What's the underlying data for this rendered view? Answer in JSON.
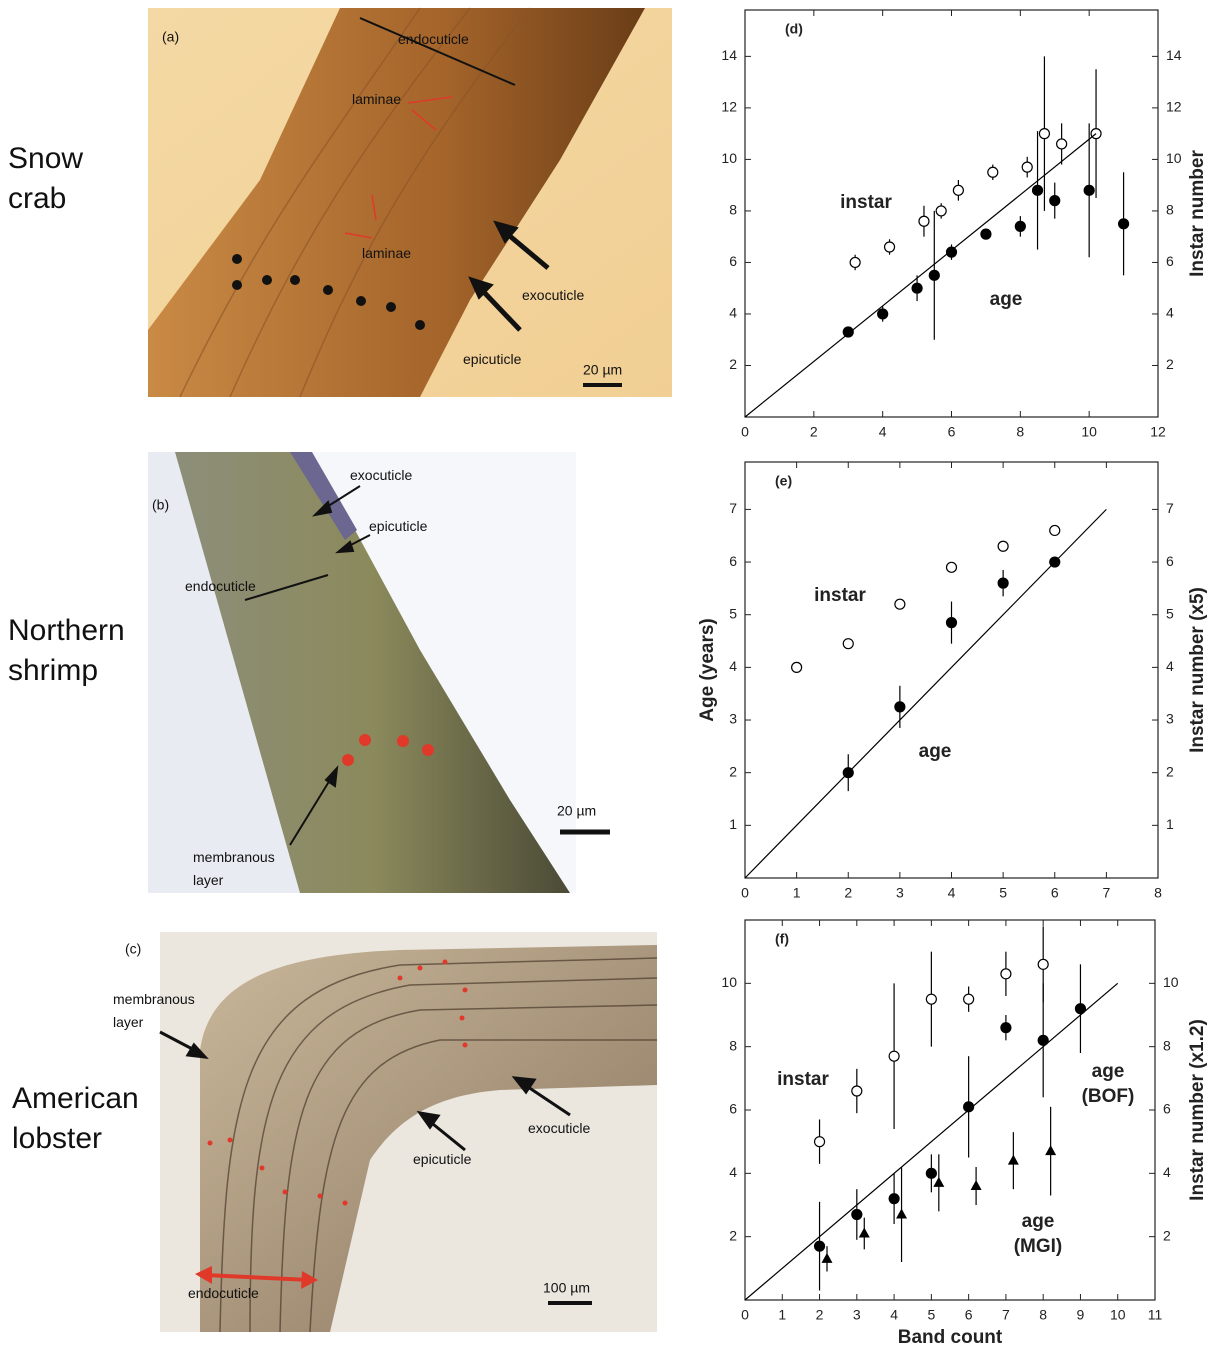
{
  "species": [
    [
      "Snow",
      "crab"
    ],
    [
      "Northern",
      "shrimp"
    ],
    [
      "American",
      "lobster"
    ]
  ],
  "photos": [
    {
      "panel": "(a)",
      "labels": [
        [
          "endocuticle"
        ],
        [
          "laminae"
        ],
        [
          "laminae"
        ],
        [
          "exocuticle"
        ],
        [
          "epicuticle"
        ]
      ],
      "scale": "20 µm"
    },
    {
      "panel": "(b)",
      "labels": [
        [
          "exocuticle"
        ],
        [
          "epicuticle"
        ],
        [
          "endocuticle"
        ],
        [
          "membranous",
          "layer"
        ]
      ],
      "scale": "20 µm"
    },
    {
      "panel": "(c)",
      "labels": [
        [
          "membranous",
          "layer"
        ],
        [
          "exocuticle"
        ],
        [
          "epicuticle"
        ],
        [
          "endocuticle"
        ]
      ],
      "scale": "100 µm"
    }
  ],
  "chart_data": [
    {
      "type": "scatter",
      "panel": "(d)",
      "y2label": "Instar number",
      "xlim": [
        0,
        12
      ],
      "xticks": [
        0,
        2,
        4,
        6,
        8,
        10,
        12
      ],
      "ylim": [
        0,
        15.8
      ],
      "yticks": [
        2,
        4,
        6,
        8,
        10,
        12,
        14
      ],
      "y2lim": [
        0,
        15.8
      ],
      "y2ticks": [
        2,
        4,
        6,
        8,
        10,
        12,
        14
      ],
      "annotations": [
        [
          "instar"
        ],
        [
          "age"
        ]
      ],
      "series": [
        {
          "marker": "open-circle",
          "color": "#000000",
          "x": [
            3.2,
            4.2,
            5.2,
            5.7,
            6.2,
            7.2,
            8.2,
            8.7,
            9.2,
            10.2
          ],
          "values": [
            6.0,
            6.6,
            7.6,
            8.0,
            8.8,
            9.5,
            9.7,
            11.0,
            10.6,
            11.0
          ],
          "errors": [
            0.3,
            0.3,
            0.6,
            0.3,
            0.4,
            0.3,
            0.4,
            3.0,
            0.8,
            2.5
          ]
        },
        {
          "marker": "filled-circle",
          "color": "#000000",
          "x": [
            3,
            4,
            5,
            5.5,
            6,
            7,
            8,
            8.5,
            9,
            10,
            11
          ],
          "values": [
            3.3,
            4.0,
            5.0,
            5.5,
            6.4,
            7.1,
            7.4,
            8.8,
            8.4,
            8.8,
            7.5
          ],
          "errors": [
            0.2,
            0.3,
            0.5,
            2.5,
            0.3,
            0.2,
            0.4,
            2.3,
            0.7,
            2.6,
            2.0
          ]
        },
        {
          "marker": "line",
          "color": "#000000",
          "x": [
            0,
            10.2
          ],
          "values": [
            0,
            11.0
          ]
        }
      ]
    },
    {
      "type": "scatter",
      "panel": "(e)",
      "ylabel": "Age (years)",
      "y2label": "Instar number (x5)",
      "xlim": [
        0,
        8
      ],
      "xticks": [
        0,
        1,
        2,
        3,
        4,
        5,
        6,
        7,
        8
      ],
      "ylim": [
        0,
        7.9
      ],
      "yticks": [
        1,
        2,
        3,
        4,
        5,
        6,
        7
      ],
      "y2lim": [
        0,
        7.9
      ],
      "y2ticks": [
        1,
        2,
        3,
        4,
        5,
        6,
        7
      ],
      "annotations": [
        [
          "instar"
        ],
        [
          "age"
        ]
      ],
      "series": [
        {
          "marker": "open-circle",
          "color": "#000000",
          "x": [
            1,
            2,
            3,
            4,
            5,
            6
          ],
          "values": [
            4.0,
            4.45,
            5.2,
            5.9,
            6.3,
            6.6
          ],
          "errors": [
            0.05,
            0.05,
            0.08,
            0.08,
            0.08,
            0.08
          ]
        },
        {
          "marker": "filled-circle",
          "color": "#000000",
          "x": [
            2,
            3,
            4,
            5,
            6
          ],
          "values": [
            2.0,
            3.25,
            4.85,
            5.6,
            6.0
          ],
          "errors": [
            0.35,
            0.4,
            0.4,
            0.25,
            0.05
          ]
        },
        {
          "marker": "line",
          "color": "#000000",
          "x": [
            0,
            7
          ],
          "values": [
            0,
            7
          ]
        }
      ]
    },
    {
      "type": "scatter",
      "panel": "(f)",
      "xlabel": "Band count",
      "y2label": "Instar number (x1.2)",
      "xlim": [
        0,
        11
      ],
      "xticks": [
        0,
        1,
        2,
        3,
        4,
        5,
        6,
        7,
        8,
        9,
        10,
        11
      ],
      "ylim": [
        0,
        12
      ],
      "yticks": [
        2,
        4,
        6,
        8,
        10
      ],
      "y2lim": [
        0,
        12
      ],
      "y2ticks": [
        2,
        4,
        6,
        8,
        10
      ],
      "annotations": [
        [
          "instar"
        ],
        [
          "age",
          "(BOF)"
        ],
        [
          "age",
          "(MGI)"
        ]
      ],
      "series": [
        {
          "marker": "open-circle",
          "color": "#000000",
          "x": [
            2,
            3,
            4,
            5,
            6,
            7,
            8
          ],
          "values": [
            5.0,
            6.6,
            7.7,
            9.5,
            9.5,
            10.3,
            10.6
          ],
          "errors": [
            0.7,
            0.7,
            2.3,
            1.5,
            0.4,
            0.7,
            1.2
          ]
        },
        {
          "marker": "filled-circle",
          "color": "#000000",
          "x": [
            2,
            3,
            4,
            5,
            6,
            7,
            8,
            9
          ],
          "values": [
            1.7,
            2.7,
            3.2,
            4.0,
            6.1,
            8.6,
            8.2,
            9.2
          ],
          "errors": [
            1.4,
            0.8,
            0.8,
            0.6,
            1.6,
            0.4,
            1.8,
            1.4
          ]
        },
        {
          "marker": "triangle",
          "color": "#000000",
          "x": [
            2.2,
            3.2,
            4.2,
            5.2,
            6.2,
            7.2,
            8.2
          ],
          "values": [
            1.3,
            2.1,
            2.7,
            3.7,
            3.6,
            4.4,
            4.7
          ],
          "errors": [
            0.4,
            0.5,
            1.5,
            0.9,
            0.6,
            0.9,
            1.4
          ]
        },
        {
          "marker": "line",
          "color": "#000000",
          "x": [
            0,
            10
          ],
          "values": [
            0,
            10
          ]
        }
      ]
    }
  ]
}
